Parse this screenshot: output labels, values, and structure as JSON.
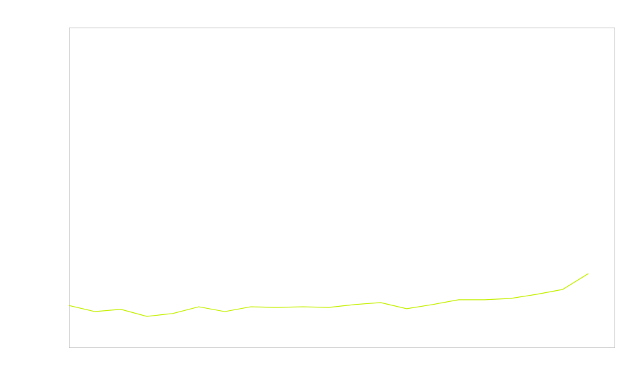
{
  "chart_data": {
    "type": "line",
    "x": [
      0,
      1,
      2,
      3,
      4,
      5,
      6,
      7,
      8,
      9,
      10,
      11,
      12,
      13,
      14,
      15,
      16,
      17,
      18,
      19,
      20
    ],
    "series": [
      {
        "color": "#c4f000",
        "values": [
          13.1,
          11.2,
          11.9,
          9.7,
          10.6,
          12.7,
          11.2,
          12.7,
          12.5,
          12.7,
          12.5,
          13.4,
          14.0,
          12.1,
          13.4,
          14.9,
          14.9,
          15.3,
          16.6,
          18.1,
          23.1
        ]
      }
    ],
    "xlim": [
      0,
      21
    ],
    "ylim": [
      0,
      100
    ]
  }
}
